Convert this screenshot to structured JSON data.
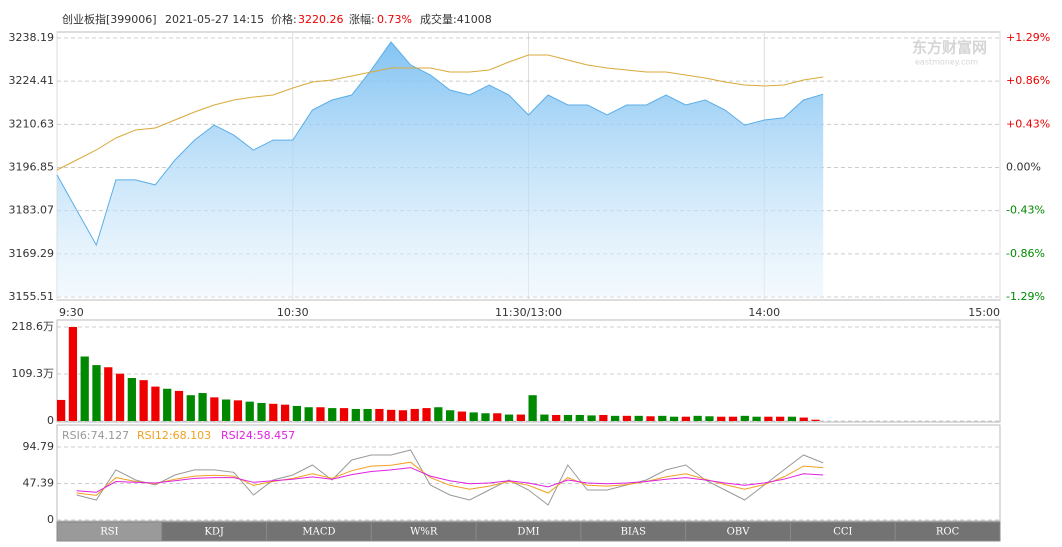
{
  "header": {
    "name": "创业板指[399006]",
    "time": "2021-05-27 14:15",
    "price_label": "价格:",
    "price": "3220.26",
    "change_label": "涨幅:",
    "change": "0.73%",
    "volume": "成交量:41008"
  },
  "watermark": {
    "brand": "东方财富网",
    "site": "eastmoney.com"
  },
  "tabs": [
    "RSI",
    "KDJ",
    "MACD",
    "W%R",
    "DMI",
    "BIAS",
    "OBV",
    "CCI",
    "ROC"
  ],
  "chart_data": [
    {
      "type": "line",
      "xlim": [
        0,
        240
      ],
      "xticks": [
        {
          "value": 0,
          "label": "9:30"
        },
        {
          "value": 60,
          "label": "10:30"
        },
        {
          "value": 120,
          "label": "11:30/13:00"
        },
        {
          "value": 180,
          "label": "14:00"
        },
        {
          "value": 240,
          "label": "15:00"
        }
      ],
      "ylim": [
        3155.51,
        3238.19
      ],
      "yticks": [
        3155.51,
        3169.29,
        3183.07,
        3196.85,
        3210.63,
        3224.41,
        3238.19
      ],
      "y2lim": [
        -1.29,
        1.29
      ],
      "y2ticks": [
        {
          "value": -1.29,
          "label": "-1.29%"
        },
        {
          "value": -0.86,
          "label": "-0.86%"
        },
        {
          "value": -0.43,
          "label": "-0.43%"
        },
        {
          "value": 0,
          "label": "0.00%"
        },
        {
          "value": 0.43,
          "label": "+0.43%"
        },
        {
          "value": 0.86,
          "label": "+0.86%"
        },
        {
          "value": 1.29,
          "label": "+1.29%"
        }
      ],
      "x": [
        0,
        5,
        10,
        15,
        20,
        25,
        30,
        35,
        40,
        45,
        50,
        55,
        60,
        65,
        70,
        75,
        80,
        85,
        90,
        95,
        100,
        105,
        110,
        115,
        120,
        125,
        130,
        135,
        140,
        145,
        150,
        155,
        160,
        165,
        170,
        175,
        180,
        185,
        190,
        195
      ],
      "series": [
        {
          "color": "#5aaee8",
          "area": true,
          "values": [
            3194.5,
            3183.3,
            3172.1,
            3192.9,
            3192.9,
            3191.3,
            3199.2,
            3205.6,
            3210.4,
            3207.2,
            3202.4,
            3205.6,
            3205.6,
            3215.2,
            3218.4,
            3220.0,
            3228.0,
            3236.9,
            3229.6,
            3226.4,
            3221.6,
            3220.0,
            3223.2,
            3220.0,
            3213.6,
            3220.0,
            3216.8,
            3216.8,
            3213.6,
            3216.8,
            3216.8,
            3220.0,
            3216.8,
            3218.4,
            3215.2,
            3210.4,
            3212.0,
            3212.7,
            3218.4,
            3220.26
          ]
        },
        {
          "color": "#d9a93a",
          "values": [
            3196.06,
            3199.25,
            3202.44,
            3206.27,
            3208.82,
            3209.46,
            3212.02,
            3214.57,
            3216.8,
            3218.4,
            3219.36,
            3220.0,
            3222.23,
            3224.15,
            3224.78,
            3226.06,
            3227.34,
            3228.61,
            3228.61,
            3228.61,
            3227.34,
            3227.34,
            3227.98,
            3230.53,
            3232.76,
            3232.76,
            3231.17,
            3229.57,
            3228.61,
            3227.98,
            3227.34,
            3227.34,
            3226.38,
            3225.42,
            3224.15,
            3223.19,
            3222.87,
            3223.19,
            3224.78,
            3225.74
          ]
        }
      ]
    },
    {
      "type": "bar",
      "xlim": [
        0,
        240
      ],
      "ylim": [
        0,
        218.6
      ],
      "yticks": [
        0,
        {
          "value": 109.3,
          "label": "109.3万"
        },
        {
          "value": 218.6,
          "label": "218.6万"
        }
      ],
      "x": [
        0,
        3,
        6,
        9,
        12,
        15,
        18,
        21,
        24,
        27,
        30,
        33,
        36,
        39,
        42,
        45,
        48,
        51,
        54,
        57,
        60,
        63,
        66,
        69,
        72,
        75,
        78,
        81,
        84,
        87,
        90,
        93,
        96,
        99,
        102,
        105,
        108,
        111,
        114,
        117,
        120,
        123,
        126,
        129,
        132,
        135,
        138,
        141,
        144,
        147,
        150,
        153,
        156,
        159,
        162,
        165,
        168,
        171,
        174,
        177,
        180,
        183,
        186,
        189,
        192
      ],
      "values": [
        49,
        218.6,
        150,
        130,
        125,
        110,
        100,
        95,
        80,
        75,
        70,
        60,
        65,
        55,
        50,
        48,
        45,
        42,
        40,
        38,
        35,
        32,
        32,
        30,
        30,
        28,
        28,
        28,
        26,
        25,
        28,
        30,
        32,
        25,
        22,
        20,
        18,
        18,
        15,
        15,
        60,
        15,
        14,
        14,
        14,
        13,
        14,
        12,
        12,
        12,
        11,
        12,
        10,
        10,
        12,
        11,
        10,
        10,
        12,
        10,
        10,
        10,
        10,
        8,
        3
      ],
      "colors": [
        "#e00",
        "#e00",
        "#080",
        "#080",
        "#e00",
        "#e00",
        "#080",
        "#e00",
        "#e00",
        "#080",
        "#e00",
        "#080",
        "#080",
        "#e00",
        "#080",
        "#e00",
        "#080",
        "#080",
        "#e00",
        "#e00",
        "#080",
        "#080",
        "#e00",
        "#080",
        "#e00",
        "#080",
        "#080",
        "#e00",
        "#e00",
        "#e00",
        "#e00",
        "#e00",
        "#080",
        "#080",
        "#e00",
        "#080",
        "#080",
        "#e00",
        "#080",
        "#e00",
        "#080",
        "#080",
        "#e00",
        "#080",
        "#080",
        "#080",
        "#e00",
        "#080",
        "#e00",
        "#080",
        "#e00",
        "#080",
        "#080",
        "#e00",
        "#080",
        "#080",
        "#e00",
        "#e00",
        "#080",
        "#080",
        "#e00",
        "#e00",
        "#080",
        "#e00",
        "#e00"
      ]
    },
    {
      "type": "line",
      "xlim": [
        0,
        240
      ],
      "ylim": [
        0,
        94.79
      ],
      "yticks": [
        0,
        47.39,
        94.79
      ],
      "x": [
        0,
        5,
        10,
        15,
        20,
        25,
        30,
        35,
        40,
        45,
        50,
        55,
        60,
        65,
        70,
        75,
        80,
        85,
        90,
        95,
        100,
        105,
        110,
        115,
        120,
        125,
        130,
        135,
        140,
        145,
        150,
        155,
        160,
        165,
        170,
        175,
        180,
        185,
        190,
        195
      ],
      "series": [
        {
          "name": "RSI6:74.127",
          "color": "#999999",
          "values": [
            null,
            32.5,
            26,
            65,
            52,
            45.4,
            58.4,
            65,
            65,
            62,
            32.5,
            52,
            58.4,
            71.4,
            52,
            77.9,
            84.4,
            84.4,
            90.9,
            45.4,
            32.5,
            26,
            39,
            52,
            39,
            19.5,
            71.4,
            39,
            39,
            45.4,
            52,
            65,
            71.4,
            52,
            39,
            26,
            45.4,
            65,
            84.4,
            74.127
          ]
        },
        {
          "name": "RSI12:68.103",
          "color": "#f0a020",
          "values": [
            null,
            35,
            32,
            55,
            50,
            47,
            53,
            57,
            58,
            57,
            45,
            50,
            54,
            60,
            54,
            64,
            70,
            71,
            75,
            55,
            45,
            40,
            44,
            50,
            45,
            35,
            55,
            45,
            44,
            46,
            50,
            56,
            60,
            53,
            46,
            40,
            46,
            56,
            70,
            68.103
          ]
        },
        {
          "name": "RSI24:58.457",
          "color": "#e020e0",
          "values": [
            null,
            38,
            36,
            50,
            49,
            48,
            51,
            54,
            55,
            55,
            49,
            51,
            53,
            56,
            53,
            59,
            63,
            65,
            68,
            57,
            51,
            47,
            48,
            51,
            48,
            43,
            52,
            48,
            47,
            48,
            50,
            53,
            55,
            52,
            48,
            45,
            48,
            53,
            60,
            58.457
          ]
        }
      ]
    }
  ]
}
